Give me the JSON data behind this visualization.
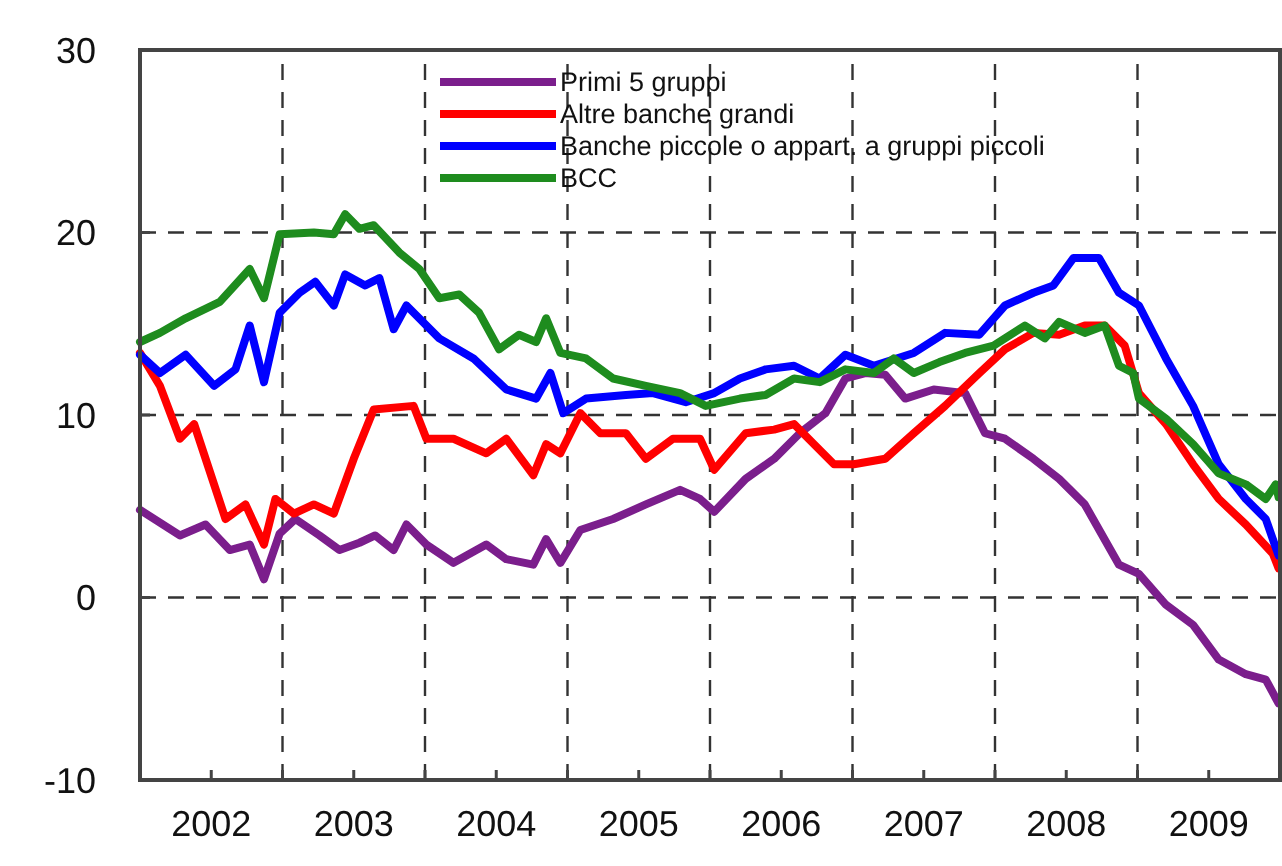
{
  "chart_data": {
    "type": "line",
    "xlim": [
      2002,
      2010
    ],
    "ylim": [
      -10,
      30
    ],
    "yticks": [
      -10,
      0,
      10,
      20,
      30
    ],
    "xticks": [
      {
        "value": 2002.5,
        "label": "2002"
      },
      {
        "value": 2003,
        "label": null
      },
      {
        "value": 2003.5,
        "label": "2003"
      },
      {
        "value": 2004,
        "label": null
      },
      {
        "value": 2004.5,
        "label": "2004"
      },
      {
        "value": 2005,
        "label": null
      },
      {
        "value": 2005.5,
        "label": "2005"
      },
      {
        "value": 2006,
        "label": null
      },
      {
        "value": 2006.5,
        "label": "2006"
      },
      {
        "value": 2007,
        "label": null
      },
      {
        "value": 2007.5,
        "label": "2007"
      },
      {
        "value": 2008,
        "label": null
      },
      {
        "value": 2008.5,
        "label": "2008"
      },
      {
        "value": 2009,
        "label": null
      },
      {
        "value": 2009.5,
        "label": "2009"
      }
    ],
    "grid": true,
    "legend": "top right",
    "marker": "none",
    "line_style": "solid",
    "series": [
      {
        "name": "Primi 5 gruppi",
        "color": "#7b1e8c",
        "x": [
          2002,
          2002.28,
          2002.46,
          2002.63,
          2002.77,
          2002.87,
          2002.98,
          2003.09,
          2003.26,
          2003.4,
          2003.54,
          2003.65,
          2003.78,
          2003.87,
          2004.01,
          2004.2,
          2004.43,
          2004.57,
          2004.76,
          2004.85,
          2004.95,
          2005.09,
          2005.32,
          2005.55,
          2005.79,
          2005.93,
          2006.03,
          2006.25,
          2006.45,
          2006.63,
          2006.81,
          2006.95,
          2007.09,
          2007.23,
          2007.37,
          2007.57,
          2007.79,
          2007.93,
          2008.07,
          2008.27,
          2008.45,
          2008.63,
          2008.87,
          2009.01,
          2009.2,
          2009.39,
          2009.57,
          2009.76,
          2009.9,
          2009.99
        ],
        "values": [
          4.8,
          3.4,
          4.0,
          2.6,
          2.9,
          1.0,
          3.5,
          4.3,
          3.4,
          2.6,
          3.0,
          3.4,
          2.6,
          4.0,
          2.9,
          1.9,
          2.9,
          2.1,
          1.8,
          3.2,
          1.9,
          3.7,
          4.3,
          5.1,
          5.9,
          5.4,
          4.7,
          6.5,
          7.6,
          9.0,
          10.1,
          12.0,
          12.3,
          12.2,
          10.9,
          11.4,
          11.2,
          9.0,
          8.7,
          7.6,
          6.5,
          5.1,
          1.8,
          1.3,
          -0.4,
          -1.5,
          -3.4,
          -4.2,
          -4.5,
          -5.8
        ]
      },
      {
        "name": "Altre banche grandi",
        "color": "#ff0000",
        "x": [
          2002,
          2002.14,
          2002.28,
          2002.38,
          2002.6,
          2002.74,
          2002.87,
          2002.95,
          2003.08,
          2003.22,
          2003.36,
          2003.5,
          2003.64,
          2003.92,
          2004.01,
          2004.2,
          2004.43,
          2004.57,
          2004.76,
          2004.85,
          2004.95,
          2005.09,
          2005.23,
          2005.41,
          2005.55,
          2005.74,
          2005.93,
          2006.03,
          2006.25,
          2006.45,
          2006.59,
          2006.73,
          2006.87,
          2007.01,
          2007.23,
          2007.43,
          2007.65,
          2007.89,
          2008.07,
          2008.27,
          2008.45,
          2008.63,
          2008.77,
          2008.91,
          2009.01,
          2009.2,
          2009.39,
          2009.57,
          2009.76,
          2009.95,
          2009.99
        ],
        "values": [
          13.4,
          11.6,
          8.7,
          9.5,
          4.3,
          5.1,
          2.9,
          5.4,
          4.6,
          5.1,
          4.6,
          7.6,
          10.3,
          10.5,
          8.7,
          8.7,
          7.9,
          8.7,
          6.7,
          8.4,
          7.9,
          10.1,
          9.0,
          9.0,
          7.6,
          8.7,
          8.7,
          7.0,
          9.0,
          9.2,
          9.5,
          8.4,
          7.3,
          7.3,
          7.6,
          9.0,
          10.5,
          12.3,
          13.6,
          14.5,
          14.4,
          14.9,
          14.9,
          13.8,
          11.2,
          9.5,
          7.3,
          5.4,
          4.0,
          2.4,
          1.6
        ]
      },
      {
        "name": "Banche piccole o appart. a gruppi piccoli",
        "color": "#0000ff",
        "x": [
          2002,
          2002.14,
          2002.32,
          2002.52,
          2002.67,
          2002.77,
          2002.87,
          2002.98,
          2003.12,
          2003.23,
          2003.36,
          2003.44,
          2003.58,
          2003.68,
          2003.78,
          2003.87,
          2004.1,
          2004.34,
          2004.57,
          2004.78,
          2004.88,
          2004.97,
          2005.13,
          2005.41,
          2005.6,
          2005.83,
          2006.03,
          2006.21,
          2006.39,
          2006.59,
          2006.77,
          2006.95,
          2007.15,
          2007.43,
          2007.65,
          2007.89,
          2008.07,
          2008.27,
          2008.41,
          2008.55,
          2008.73,
          2008.87,
          2009.01,
          2009.2,
          2009.39,
          2009.57,
          2009.76,
          2009.9,
          2009.99
        ],
        "values": [
          13.3,
          12.3,
          13.3,
          11.6,
          12.5,
          14.9,
          11.8,
          15.6,
          16.7,
          17.3,
          16.0,
          17.7,
          17.1,
          17.5,
          14.7,
          16.0,
          14.2,
          13.1,
          11.4,
          10.9,
          12.3,
          10.1,
          10.9,
          11.1,
          11.2,
          10.7,
          11.2,
          12.0,
          12.5,
          12.7,
          12.0,
          13.3,
          12.7,
          13.4,
          14.5,
          14.4,
          16.0,
          16.7,
          17.1,
          18.6,
          18.6,
          16.7,
          16.0,
          13.1,
          10.5,
          7.3,
          5.4,
          4.3,
          2.3
        ]
      },
      {
        "name": "BCC",
        "color": "#1e8c1e",
        "x": [
          2002,
          2002.14,
          2002.32,
          2002.56,
          2002.77,
          2002.87,
          2002.98,
          2003.22,
          2003.36,
          2003.44,
          2003.54,
          2003.64,
          2003.82,
          2003.96,
          2004.1,
          2004.24,
          2004.38,
          2004.52,
          2004.66,
          2004.78,
          2004.85,
          2004.95,
          2005.13,
          2005.32,
          2005.55,
          2005.79,
          2005.97,
          2006.21,
          2006.39,
          2006.59,
          2006.77,
          2006.95,
          2007.15,
          2007.29,
          2007.43,
          2007.61,
          2007.79,
          2007.99,
          2008.21,
          2008.35,
          2008.45,
          2008.63,
          2008.77,
          2008.87,
          2008.97,
          2009.01,
          2009.2,
          2009.39,
          2009.57,
          2009.76,
          2009.9,
          2009.97,
          2009.99
        ],
        "values": [
          14.0,
          14.5,
          15.3,
          16.2,
          18.0,
          16.4,
          19.9,
          20.0,
          19.9,
          21.0,
          20.2,
          20.4,
          18.9,
          18.0,
          16.4,
          16.6,
          15.6,
          13.6,
          14.4,
          14.0,
          15.3,
          13.4,
          13.1,
          12.0,
          11.6,
          11.2,
          10.5,
          10.9,
          11.1,
          12.0,
          11.8,
          12.5,
          12.3,
          13.1,
          12.3,
          12.9,
          13.4,
          13.8,
          14.9,
          14.2,
          15.1,
          14.5,
          14.9,
          12.7,
          12.3,
          10.9,
          9.8,
          8.4,
          6.8,
          6.2,
          5.4,
          6.2,
          5.5
        ]
      }
    ]
  }
}
